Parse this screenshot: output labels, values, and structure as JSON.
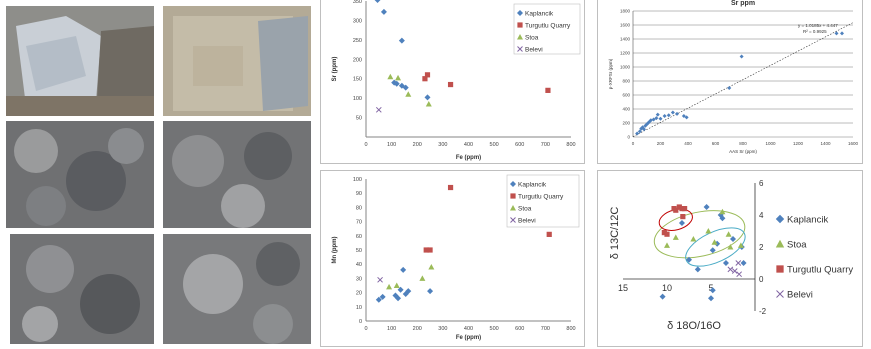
{
  "colors": {
    "kaplancik": "#4f81bd",
    "turgutlu": "#c0504d",
    "stoa": "#9bbb59",
    "belevi": "#8064a2"
  },
  "legend": [
    "Kaplancik",
    "Turgutlu Quarry",
    "Stoa",
    "Belevi"
  ],
  "legend_isotope": [
    "Kaplancik",
    "Stoa",
    "Turgutlu Quarry",
    "Belevi"
  ],
  "chart_data": [
    {
      "type": "scatter",
      "title": "",
      "xlabel": "Fe (ppm)",
      "ylabel": "Sr (ppm)",
      "xlim": [
        0,
        800
      ],
      "ylim": [
        0,
        350
      ],
      "xticks": [
        "0",
        "100",
        "200",
        "300",
        "400",
        "500",
        "600",
        "700",
        "800"
      ],
      "yticks": [
        "50",
        "100",
        "150",
        "200",
        "250",
        "300",
        "350"
      ],
      "legend_position": "right",
      "series": [
        {
          "name": "Kaplancik",
          "points": [
            [
              45,
              355
            ],
            [
              70,
              322
            ],
            [
              140,
              248
            ],
            [
              110,
              140
            ],
            [
              120,
              137
            ],
            [
              140,
              132
            ],
            [
              155,
              127
            ],
            [
              240,
              102
            ]
          ]
        },
        {
          "name": "Turgutlu Quarry",
          "points": [
            [
              230,
              150
            ],
            [
              240,
              160
            ],
            [
              330,
              135
            ],
            [
              710,
              120
            ]
          ]
        },
        {
          "name": "Stoa",
          "points": [
            [
              95,
              155
            ],
            [
              125,
              152
            ],
            [
              165,
              110
            ],
            [
              245,
              85
            ]
          ]
        },
        {
          "name": "Belevi",
          "points": [
            [
              50,
              70
            ]
          ]
        }
      ]
    },
    {
      "type": "scatter",
      "title": "Sr ppm",
      "xlabel": "AAS Sr (ppm)",
      "ylabel": "p-XRFSr (ppm)",
      "xlim": [
        0,
        1600
      ],
      "ylim": [
        0,
        1800
      ],
      "xticks": [
        "0",
        "200",
        "400",
        "600",
        "800",
        "1000",
        "1200",
        "1400",
        "1600"
      ],
      "yticks": [
        "0",
        "200",
        "400",
        "600",
        "800",
        "1000",
        "1200",
        "1400",
        "1600",
        "1800"
      ],
      "equation": "y = 1.0185x + 4.447",
      "r2": "R² = 0.9925",
      "points": [
        [
          30,
          50
        ],
        [
          50,
          80
        ],
        [
          60,
          120
        ],
        [
          70,
          140
        ],
        [
          80,
          110
        ],
        [
          90,
          160
        ],
        [
          100,
          180
        ],
        [
          110,
          200
        ],
        [
          120,
          220
        ],
        [
          130,
          240
        ],
        [
          150,
          250
        ],
        [
          170,
          270
        ],
        [
          180,
          320
        ],
        [
          200,
          260
        ],
        [
          230,
          300
        ],
        [
          260,
          310
        ],
        [
          290,
          350
        ],
        [
          320,
          330
        ],
        [
          370,
          300
        ],
        [
          390,
          280
        ],
        [
          700,
          700
        ],
        [
          790,
          1150
        ],
        [
          1520,
          1480
        ],
        [
          1480,
          1480
        ]
      ],
      "trendline": [
        [
          0,
          4.447
        ],
        [
          1600,
          1634
        ]
      ]
    },
    {
      "type": "scatter",
      "title": "",
      "xlabel": "Fe (ppm)",
      "ylabel": "Mn (ppm)",
      "xlim": [
        0,
        800
      ],
      "ylim": [
        0,
        100
      ],
      "xticks": [
        "0",
        "100",
        "200",
        "300",
        "400",
        "500",
        "600",
        "700",
        "800"
      ],
      "yticks": [
        "0",
        "10",
        "20",
        "30",
        "40",
        "50",
        "60",
        "70",
        "80",
        "90",
        "100"
      ],
      "legend_position": "top-right",
      "series": [
        {
          "name": "Kaplancik",
          "points": [
            [
              50,
              15
            ],
            [
              65,
              17
            ],
            [
              115,
              18
            ],
            [
              125,
              16
            ],
            [
              135,
              22
            ],
            [
              145,
              36
            ],
            [
              155,
              19
            ],
            [
              165,
              21
            ],
            [
              250,
              21
            ]
          ]
        },
        {
          "name": "Turgutlu Quarry",
          "points": [
            [
              235,
              50
            ],
            [
              250,
              50
            ],
            [
              330,
              94
            ],
            [
              715,
              61
            ]
          ]
        },
        {
          "name": "Stoa",
          "points": [
            [
              90,
              24
            ],
            [
              120,
              25
            ],
            [
              220,
              30
            ],
            [
              255,
              38
            ]
          ]
        },
        {
          "name": "Belevi",
          "points": [
            [
              55,
              29
            ]
          ]
        }
      ]
    },
    {
      "type": "scatter",
      "title": "",
      "xlabel": "δ 18O/16O",
      "ylabel": "δ 13C/12C",
      "xlim": [
        -15,
        0
      ],
      "ylim": [
        -2,
        6
      ],
      "xticks": [
        "15",
        "10",
        "5"
      ],
      "yticks": [
        "-2",
        "0",
        "2",
        "4",
        "6"
      ],
      "legend_position": "right",
      "series": [
        {
          "name": "Kaplancik",
          "points": [
            [
              -10.5,
              -1.1
            ],
            [
              -8.3,
              3.5
            ],
            [
              -7.5,
              1.2
            ],
            [
              -6.5,
              0.6
            ],
            [
              -5.5,
              4.5
            ],
            [
              -5.0,
              -1.2
            ],
            [
              -4.8,
              -0.7
            ],
            [
              -4.3,
              2.2
            ],
            [
              -3.9,
              4.0
            ],
            [
              -3.3,
              1.0
            ],
            [
              -2.5,
              2.5
            ],
            [
              -1.5,
              2.0
            ],
            [
              -1.3,
              1.0
            ],
            [
              -3.7,
              3.8
            ],
            [
              -4.8,
              1.8
            ]
          ]
        },
        {
          "name": "Stoa",
          "points": [
            [
              -10.0,
              2.1
            ],
            [
              -9.0,
              2.6
            ],
            [
              -7.0,
              2.5
            ],
            [
              -5.3,
              3.0
            ],
            [
              -3.7,
              4.2
            ],
            [
              -3.0,
              2.8
            ],
            [
              -2.8,
              2.0
            ],
            [
              -1.6,
              2.1
            ],
            [
              -4.6,
              2.3
            ]
          ]
        },
        {
          "name": "Turgutlu Quarry",
          "points": [
            [
              -9.2,
              4.4
            ],
            [
              -9.0,
              4.3
            ],
            [
              -8.6,
              4.5
            ],
            [
              -8.3,
              4.4
            ],
            [
              -8.0,
              4.4
            ],
            [
              -8.2,
              3.9
            ],
            [
              -10.3,
              2.9
            ],
            [
              -10.0,
              2.8
            ]
          ]
        },
        {
          "name": "Belevi",
          "points": [
            [
              -1.8,
              0.3
            ],
            [
              -2.3,
              0.5
            ],
            [
              -2.8,
              0.6
            ],
            [
              -1.9,
              1.0
            ]
          ]
        }
      ]
    }
  ]
}
